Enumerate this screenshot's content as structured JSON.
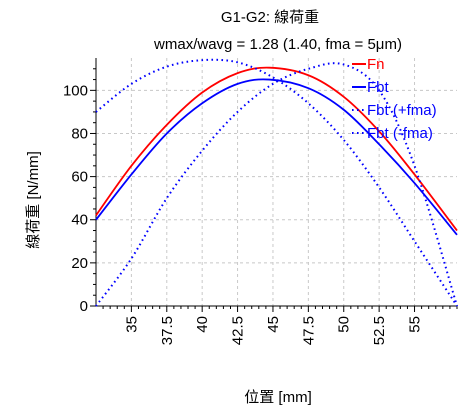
{
  "chart_data": {
    "type": "line",
    "title": "G1-G2: 線荷重",
    "subtitle": "wmax/wavg = 1.28 (1.40, fma = 5μm)",
    "xlabel": "位置 [mm]",
    "ylabel": "線荷重 [N/mm]",
    "xlim": [
      32.5,
      58
    ],
    "ylim": [
      0,
      115
    ],
    "xticks": [
      35,
      37.5,
      40,
      42.5,
      45,
      47.5,
      50,
      52.5,
      55
    ],
    "xtick_labels": [
      "35",
      "37.5",
      "40",
      "42.5",
      "45",
      "47.5",
      "50",
      "52.5",
      "55"
    ],
    "yticks": [
      0,
      20,
      40,
      60,
      80,
      100
    ],
    "ytick_labels": [
      "0",
      "20",
      "40",
      "60",
      "80",
      "100"
    ],
    "grid": true,
    "legend_position": "top-right",
    "series": [
      {
        "name": "Fn",
        "color": "#ff0000",
        "style": "solid",
        "x": [
          32.5,
          35,
          37.5,
          40,
          42.5,
          44.75,
          47.5,
          50,
          52.5,
          55,
          58
        ],
        "y": [
          42,
          65,
          84,
          99,
          108,
          110.5,
          107,
          97,
          81,
          61,
          35
        ]
      },
      {
        "name": "Fbt",
        "color": "#0000ff",
        "style": "solid",
        "x": [
          32.5,
          35,
          37.5,
          40,
          42.5,
          44.75,
          47.5,
          50,
          52.5,
          55,
          58
        ],
        "y": [
          40,
          61,
          80,
          94,
          103,
          105,
          101,
          91,
          75,
          57,
          33
        ]
      },
      {
        "name": "Fbt (+fma)",
        "color": "#0000ff",
        "style": "dotted",
        "x": [
          32.5,
          35,
          37.5,
          40,
          42.5,
          45,
          47.5,
          50,
          52.5,
          55,
          58
        ],
        "y": [
          90,
          103,
          111,
          114,
          113,
          106,
          94,
          77,
          55,
          30,
          0
        ]
      },
      {
        "name": "Fbt (-fma)",
        "color": "#0000ff",
        "style": "dotted",
        "x": [
          32.5,
          35,
          37.5,
          40,
          42.5,
          45,
          47.5,
          50,
          52.5,
          55,
          58
        ],
        "y": [
          0,
          22,
          50,
          72,
          90,
          103,
          110,
          112,
          100,
          65,
          0
        ]
      }
    ]
  }
}
